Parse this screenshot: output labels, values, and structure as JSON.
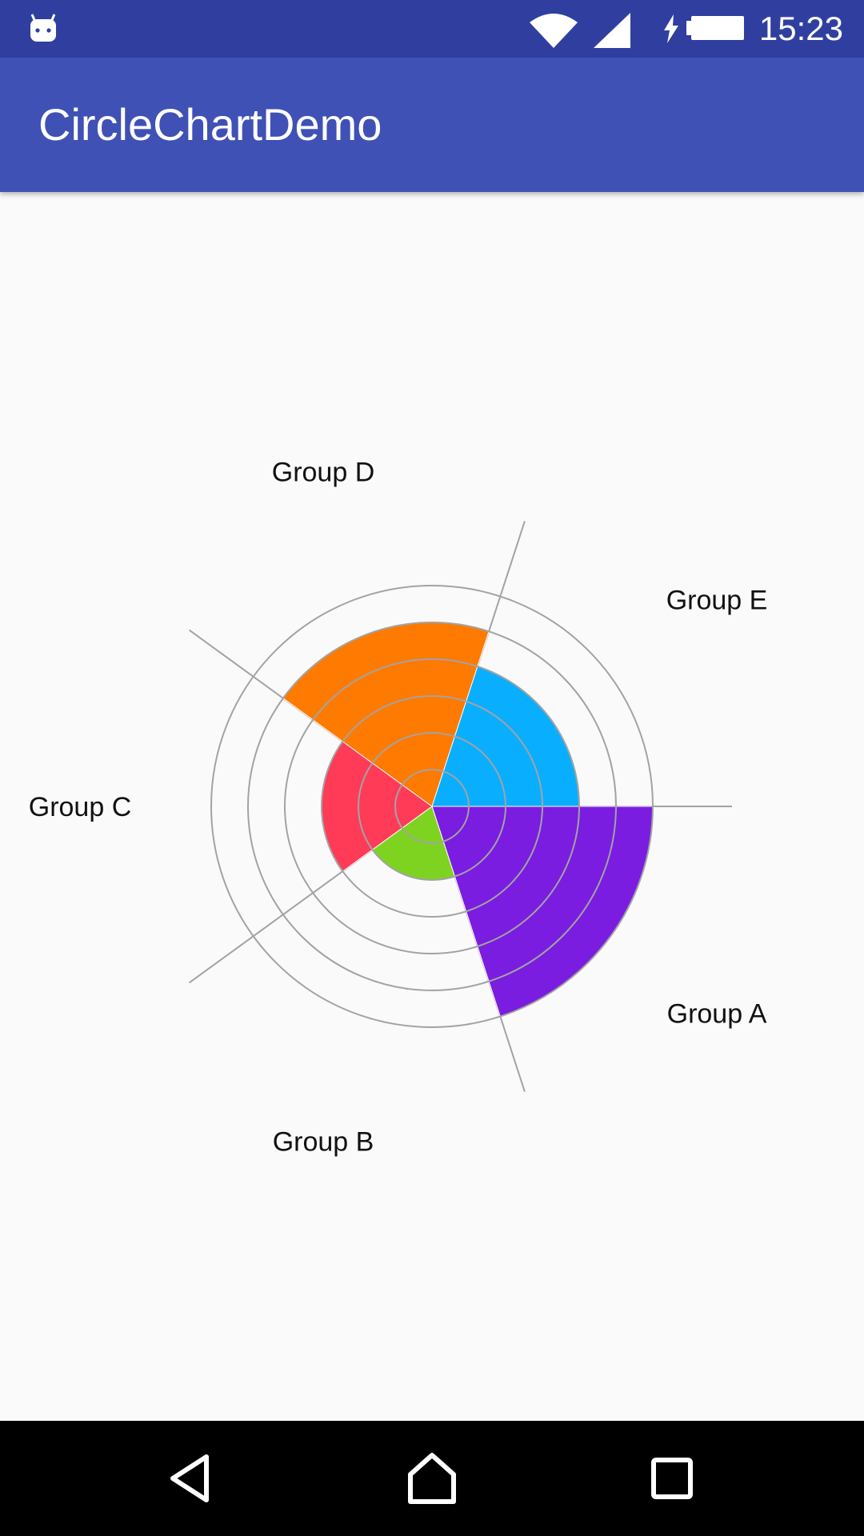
{
  "status_bar": {
    "time": "15:23",
    "icons": [
      "android-debug-icon",
      "wifi-icon",
      "cell-signal-icon",
      "charging-icon",
      "battery-icon"
    ]
  },
  "app_bar": {
    "title": "CircleChartDemo"
  },
  "chart_data": {
    "type": "polar-area",
    "title": "",
    "categories": [
      "Group A",
      "Group B",
      "Group C",
      "Group D",
      "Group E"
    ],
    "values": [
      3,
      1,
      1.5,
      2.5,
      2
    ],
    "max_value": 3,
    "ring_count": 6,
    "grid": true,
    "colors": [
      "#7a1de0",
      "#7ed321",
      "#ff3b58",
      "#ff7a00",
      "#0aaeff"
    ]
  },
  "nav_bar": {
    "buttons": [
      "back-icon",
      "home-icon",
      "recents-icon"
    ]
  },
  "colors": {
    "status_bar": "#303f9f",
    "app_bar": "#3f51b5",
    "background": "#fafafa",
    "grid": "#a3a3a3",
    "nav_bar": "#000000"
  }
}
